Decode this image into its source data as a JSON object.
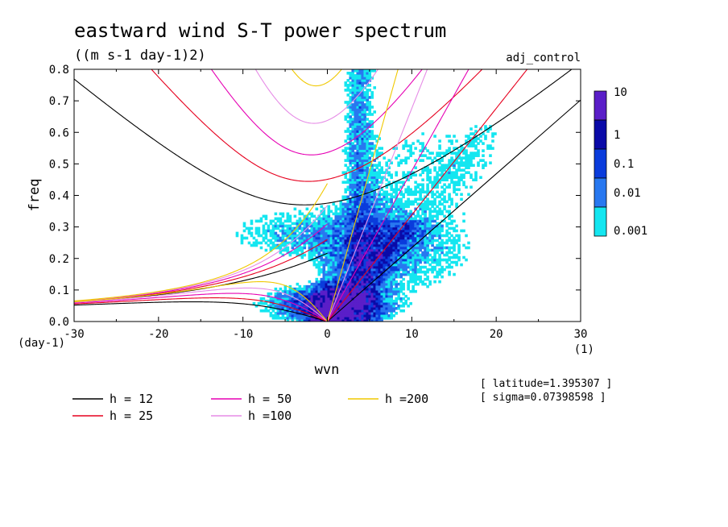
{
  "chart_data": {
    "type": "contour",
    "title": "eastward wind S-T power spectrum",
    "subtitle": "((m s-1 day-1)2)",
    "run_label": "adj_control",
    "xlabel": "wvn",
    "ylabel": "freq",
    "x_unit": "(1)",
    "y_unit": "(day-1)",
    "xlim": [
      -30,
      30
    ],
    "ylim": [
      0,
      0.8
    ],
    "x_ticks": [
      "-30",
      "-20",
      "-10",
      "0",
      "10",
      "20",
      "30"
    ],
    "y_ticks": [
      "0.0",
      "0.1",
      "0.2",
      "0.3",
      "0.4",
      "0.5",
      "0.6",
      "0.7",
      "0.8"
    ],
    "colorbar": {
      "labels": [
        "10",
        "1",
        "0.1",
        "0.01",
        "0.001"
      ],
      "colors": [
        "#5a1ec8",
        "#0a0aa8",
        "#0a3cdc",
        "#2878f0",
        "#14e6f0"
      ]
    },
    "dispersion_curves": [
      {
        "name": "h = 12",
        "h": 12,
        "color": "#000000"
      },
      {
        "name": "h = 25",
        "h": 25,
        "color": "#e6001e"
      },
      {
        "name": "h = 50",
        "h": 50,
        "color": "#e600b4"
      },
      {
        "name": "h =100",
        "h": 100,
        "color": "#e68ce6"
      },
      {
        "name": "h =200",
        "h": 200,
        "color": "#f0c800"
      }
    ],
    "info": [
      "[ latitude=1.395307 ]",
      "[ sigma=0.07398598 ]"
    ]
  }
}
